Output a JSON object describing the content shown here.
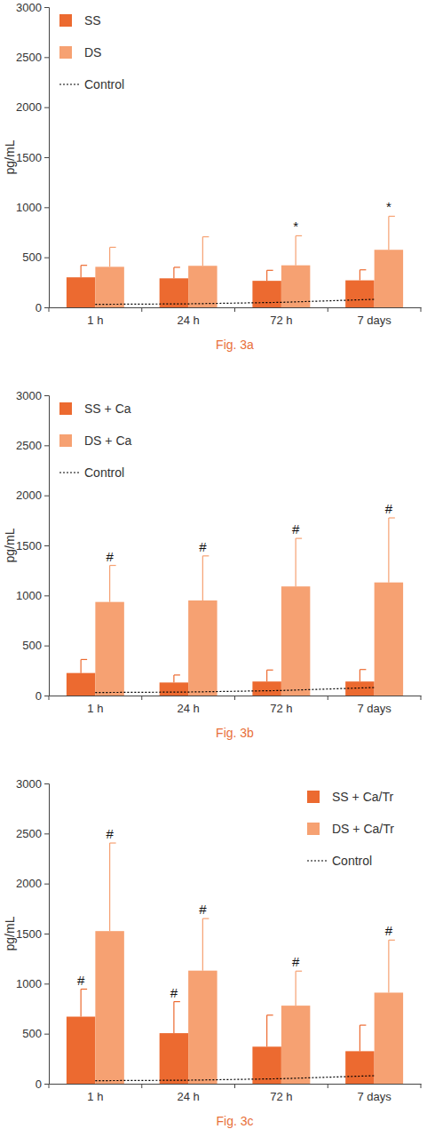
{
  "chart_data": [
    {
      "type": "bar",
      "title": "Fig. 3a",
      "y_label": "pg/mL",
      "categories": [
        "1 h",
        "24 h",
        "72 h",
        "7 days"
      ],
      "ylim": [
        0,
        3000
      ],
      "yticks": [
        0,
        500,
        1000,
        1500,
        2000,
        2500,
        3000
      ],
      "legend": "upper left",
      "series": [
        {
          "name": "SS",
          "color": "#ec6a30",
          "values": [
            300,
            290,
            265,
            270
          ],
          "errors": [
            120,
            110,
            105,
            105
          ],
          "annotations": [
            null,
            null,
            null,
            null
          ]
        },
        {
          "name": "DS",
          "color": "#f6a172",
          "values": [
            405,
            415,
            420,
            575
          ],
          "errors": [
            195,
            290,
            295,
            335
          ],
          "annotations": [
            null,
            null,
            "*",
            "*"
          ]
        },
        {
          "name": "Control",
          "type": "line",
          "line_style": "dotted",
          "color": "#000000",
          "values": [
            30,
            35,
            50,
            80
          ]
        }
      ]
    },
    {
      "type": "bar",
      "title": "Fig. 3b",
      "y_label": "pg/mL",
      "categories": [
        "1 h",
        "24 h",
        "72 h",
        "7 days"
      ],
      "ylim": [
        0,
        3000
      ],
      "yticks": [
        0,
        500,
        1000,
        1500,
        2000,
        2500,
        3000
      ],
      "legend": "upper left",
      "series": [
        {
          "name": "SS + Ca",
          "color": "#ec6a30",
          "values": [
            225,
            130,
            140,
            140
          ],
          "errors": [
            135,
            75,
            115,
            120
          ],
          "annotations": [
            null,
            null,
            null,
            null
          ]
        },
        {
          "name": "DS + Ca",
          "color": "#f6a172",
          "values": [
            935,
            950,
            1090,
            1130
          ],
          "errors": [
            365,
            445,
            480,
            645
          ],
          "annotations": [
            "#",
            "#",
            "#",
            "#"
          ]
        },
        {
          "name": "Control",
          "type": "line",
          "line_style": "dotted",
          "color": "#000000",
          "values": [
            30,
            35,
            50,
            80
          ]
        }
      ]
    },
    {
      "type": "bar",
      "title": "Fig. 3c",
      "y_label": "pg/mL",
      "categories": [
        "1 h",
        "24 h",
        "72 h",
        "7 days"
      ],
      "ylim": [
        0,
        3000
      ],
      "yticks": [
        0,
        500,
        1000,
        1500,
        2000,
        2500,
        3000
      ],
      "legend": "upper right",
      "series": [
        {
          "name": "SS + Ca/Tr",
          "color": "#ec6a30",
          "values": [
            670,
            505,
            370,
            325
          ],
          "errors": [
            275,
            315,
            315,
            260
          ],
          "annotations": [
            "#",
            "#",
            null,
            null
          ]
        },
        {
          "name": "DS + Ca/Tr",
          "color": "#f6a172",
          "values": [
            1525,
            1130,
            780,
            910
          ],
          "errors": [
            880,
            520,
            345,
            525
          ],
          "annotations": [
            "#",
            "#",
            "#",
            "#"
          ]
        },
        {
          "name": "Control",
          "type": "line",
          "line_style": "dotted",
          "color": "#000000",
          "values": [
            30,
            35,
            50,
            80
          ]
        }
      ]
    }
  ]
}
